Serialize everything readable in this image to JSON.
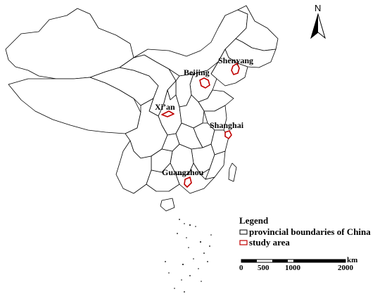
{
  "map": {
    "cities": [
      {
        "id": "shenyang",
        "label": "Shenyang"
      },
      {
        "id": "beijing",
        "label": "Beijing"
      },
      {
        "id": "xian",
        "label": "Xi’an"
      },
      {
        "id": "shanghai",
        "label": "Shanghai"
      },
      {
        "id": "guangzhou",
        "label": "Guangzhou"
      }
    ],
    "north_arrow": {
      "label": "N"
    },
    "legend": {
      "title": "Legend",
      "items": [
        {
          "label": "provincial boundaries of China",
          "color": "#000000"
        },
        {
          "label": "study area",
          "color": "#c00000"
        }
      ]
    },
    "scale_bar": {
      "unit": "km",
      "ticks": [
        "0",
        "500",
        "1000",
        "2000"
      ]
    }
  }
}
